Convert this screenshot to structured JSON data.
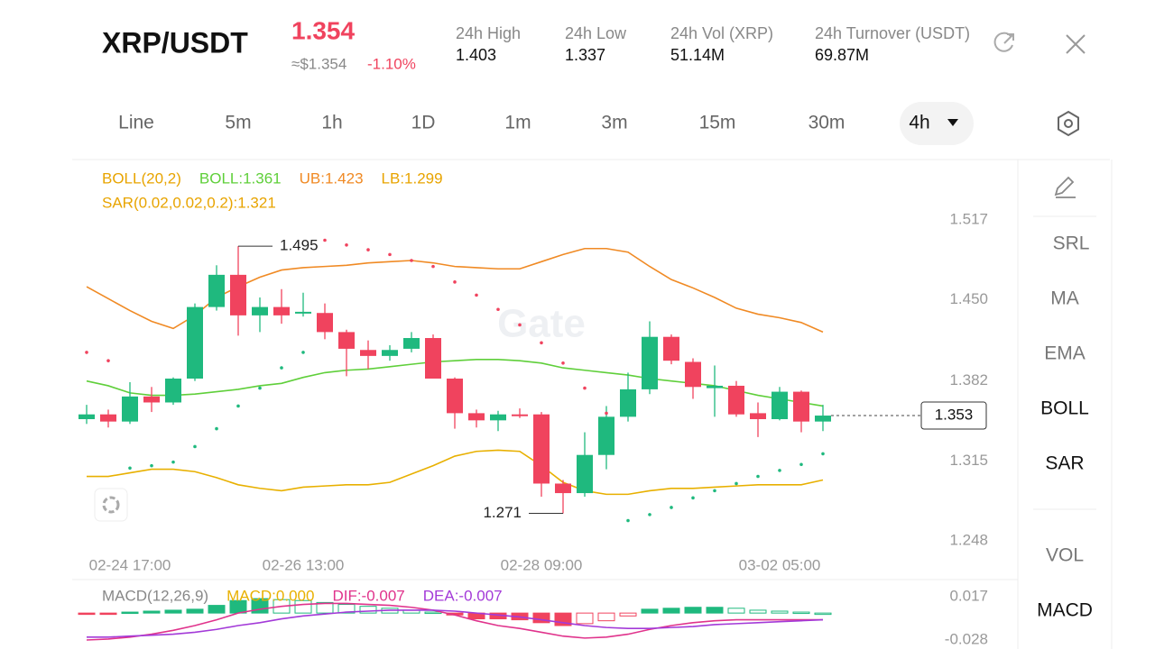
{
  "header": {
    "pair": "XRP/USDT",
    "price": "1.354",
    "price_usd": "≈$1.354",
    "change": "-1.10%",
    "stats": [
      {
        "label": "24h  High",
        "value": "1.403"
      },
      {
        "label": "24h  Low",
        "value": "1.337"
      },
      {
        "label": "24h  Vol (XRP)",
        "value": "51.14M"
      },
      {
        "label": "24h  Turnover (USDT)",
        "value": "69.87M"
      }
    ]
  },
  "tabs": [
    "Line",
    "5m",
    "1h",
    "1D",
    "1m",
    "3m",
    "15m",
    "30m",
    "4h"
  ],
  "side_menu": [
    "SRL",
    "MA",
    "EMA",
    "BOLL",
    "SAR",
    "VOL",
    "MACD"
  ],
  "watermark": "Gate",
  "chart_data": [
    {
      "type": "candlestick",
      "legend": [
        {
          "text": "BOLL(20,2)",
          "color": "#e8a400"
        },
        {
          "text": "BOLL:1.361",
          "color": "#5fcf3a"
        },
        {
          "text": "UB:1.423",
          "color": "#f08a24"
        },
        {
          "text": "LB:1.299",
          "color": "#e8a400"
        },
        {
          "text": "SAR(0.02,0.02,0.2):1.321",
          "color": "#e8a400"
        }
      ],
      "categories": [
        null,
        null,
        "02-24 17:00",
        null,
        null,
        null,
        null,
        null,
        null,
        null,
        "02-26 13:00",
        null,
        null,
        null,
        null,
        null,
        null,
        null,
        null,
        null,
        null,
        "02-28 09:00",
        null,
        null,
        null,
        null,
        null,
        null,
        null,
        null,
        null,
        null,
        "03-02 05:00",
        null,
        null
      ],
      "open": [
        1.35,
        1.354,
        1.348,
        1.369,
        1.364,
        1.384,
        1.444,
        1.471,
        1.437,
        1.444,
        1.439,
        1.439,
        1.423,
        1.408,
        1.403,
        1.409,
        1.418,
        1.384,
        1.355,
        1.349,
        1.354,
        1.354,
        1.296,
        1.288,
        1.32,
        1.352,
        1.375,
        1.419,
        1.398,
        1.376,
        1.378,
        1.355,
        1.35,
        1.373,
        1.348
      ],
      "high": [
        1.362,
        1.358,
        1.381,
        1.377,
        1.385,
        1.447,
        1.479,
        1.495,
        1.452,
        1.459,
        1.456,
        1.447,
        1.425,
        1.416,
        1.412,
        1.423,
        1.421,
        1.385,
        1.358,
        1.357,
        1.359,
        1.356,
        1.299,
        1.339,
        1.361,
        1.389,
        1.432,
        1.421,
        1.401,
        1.395,
        1.382,
        1.364,
        1.377,
        1.374,
        1.362
      ],
      "low": [
        1.346,
        1.343,
        1.346,
        1.356,
        1.362,
        1.382,
        1.441,
        1.42,
        1.423,
        1.43,
        1.436,
        1.417,
        1.386,
        1.392,
        1.399,
        1.406,
        1.384,
        1.342,
        1.343,
        1.34,
        1.351,
        1.285,
        1.271,
        1.285,
        1.308,
        1.348,
        1.371,
        1.396,
        1.367,
        1.352,
        1.352,
        1.335,
        1.349,
        1.339,
        1.34
      ],
      "close": [
        1.354,
        1.348,
        1.369,
        1.364,
        1.384,
        1.444,
        1.471,
        1.437,
        1.444,
        1.437,
        1.44,
        1.423,
        1.409,
        1.403,
        1.408,
        1.418,
        1.384,
        1.355,
        1.349,
        1.354,
        1.353,
        1.296,
        1.288,
        1.32,
        1.352,
        1.375,
        1.419,
        1.399,
        1.377,
        1.378,
        1.354,
        1.35,
        1.373,
        1.348,
        1.353
      ],
      "series": [
        {
          "name": "UB",
          "color": "#f08a24",
          "values": [
            1.461,
            1.451,
            1.441,
            1.432,
            1.426,
            1.437,
            1.452,
            1.461,
            1.469,
            1.475,
            1.477,
            1.478,
            1.479,
            1.481,
            1.482,
            1.483,
            1.481,
            1.478,
            1.477,
            1.476,
            1.476,
            1.482,
            1.488,
            1.493,
            1.493,
            1.49,
            1.478,
            1.467,
            1.46,
            1.452,
            1.443,
            1.438,
            1.435,
            1.431,
            1.423
          ]
        },
        {
          "name": "BOLL",
          "color": "#5fcf3a",
          "values": [
            1.382,
            1.378,
            1.372,
            1.37,
            1.37,
            1.371,
            1.373,
            1.375,
            1.378,
            1.38,
            1.385,
            1.389,
            1.391,
            1.392,
            1.394,
            1.396,
            1.398,
            1.399,
            1.4,
            1.4,
            1.399,
            1.397,
            1.393,
            1.391,
            1.389,
            1.387,
            1.384,
            1.382,
            1.38,
            1.378,
            1.374,
            1.37,
            1.367,
            1.364,
            1.361
          ]
        },
        {
          "name": "LB",
          "color": "#e8b000",
          "values": [
            1.302,
            1.302,
            1.305,
            1.308,
            1.308,
            1.306,
            1.301,
            1.295,
            1.292,
            1.29,
            1.293,
            1.294,
            1.295,
            1.295,
            1.297,
            1.304,
            1.311,
            1.319,
            1.323,
            1.324,
            1.323,
            1.311,
            1.297,
            1.29,
            1.287,
            1.287,
            1.29,
            1.292,
            1.292,
            1.293,
            1.294,
            1.295,
            1.295,
            1.295,
            1.299
          ]
        }
      ],
      "sar": [
        1.406,
        1.399,
        1.309,
        1.311,
        1.314,
        1.327,
        1.342,
        1.361,
        1.376,
        1.393,
        1.406,
        1.5,
        1.496,
        1.492,
        1.488,
        1.483,
        1.478,
        1.465,
        1.454,
        1.442,
        1.429,
        1.414,
        1.397,
        1.376,
        1.355,
        1.265,
        1.27,
        1.276,
        1.284,
        1.29,
        1.296,
        1.302,
        1.307,
        1.312,
        1.321
      ],
      "up_color": "#1fb97e",
      "down_color": "#f0435e",
      "ylim": [
        1.248,
        1.517
      ],
      "yticks": [
        1.517,
        {
          "value": 1.45,
          "label": "1.450"
        },
        1.382,
        1.315,
        1.248
      ]
    },
    {
      "type": "macd",
      "legend": [
        {
          "text": "MACD(12,26,9)",
          "color": "#888888"
        },
        {
          "text": "MACD:0.000",
          "color": "#e8b000"
        },
        {
          "text": "DIF:-0.007",
          "color": "#e0338c"
        },
        {
          "text": "DEA:-0.007",
          "color": "#a33ad8"
        }
      ],
      "histogram": [
        -0.001,
        -0.001,
        0.001,
        0.002,
        0.003,
        0.004,
        0.008,
        0.013,
        0.015,
        0.014,
        0.013,
        0.011,
        0.009,
        0.007,
        0.005,
        0.003,
        0.001,
        -0.002,
        -0.006,
        -0.006,
        -0.007,
        -0.01,
        -0.013,
        -0.011,
        -0.008,
        -0.003,
        0.004,
        0.005,
        0.006,
        0.006,
        0.005,
        0.003,
        0.002,
        0.001,
        0
      ],
      "series": [
        {
          "name": "DIF",
          "color": "#e0338c",
          "values": [
            -0.028,
            -0.027,
            -0.025,
            -0.022,
            -0.018,
            -0.013,
            -0.007,
            0.0,
            0.004,
            0.007,
            0.009,
            0.01,
            0.01,
            0.009,
            0.008,
            0.006,
            0.003,
            -0.002,
            -0.008,
            -0.013,
            -0.016,
            -0.02,
            -0.024,
            -0.026,
            -0.025,
            -0.022,
            -0.017,
            -0.013,
            -0.01,
            -0.008,
            -0.007,
            -0.007,
            -0.007,
            -0.007,
            -0.007
          ]
        },
        {
          "name": "DEA",
          "color": "#a33ad8",
          "values": [
            -0.025,
            -0.025,
            -0.024,
            -0.023,
            -0.022,
            -0.02,
            -0.017,
            -0.013,
            -0.01,
            -0.006,
            -0.003,
            -0.001,
            0.001,
            0.002,
            0.003,
            0.003,
            0.003,
            0.002,
            0.0,
            -0.002,
            -0.004,
            -0.007,
            -0.01,
            -0.013,
            -0.015,
            -0.016,
            -0.016,
            -0.015,
            -0.014,
            -0.012,
            -0.011,
            -0.01,
            -0.009,
            -0.008,
            -0.007
          ]
        }
      ],
      "up_color": "#1fb97e",
      "down_color": "#f0435e",
      "ylim": [
        -0.028,
        0.017
      ],
      "yticks": [
        0.017,
        -0.028
      ]
    }
  ]
}
